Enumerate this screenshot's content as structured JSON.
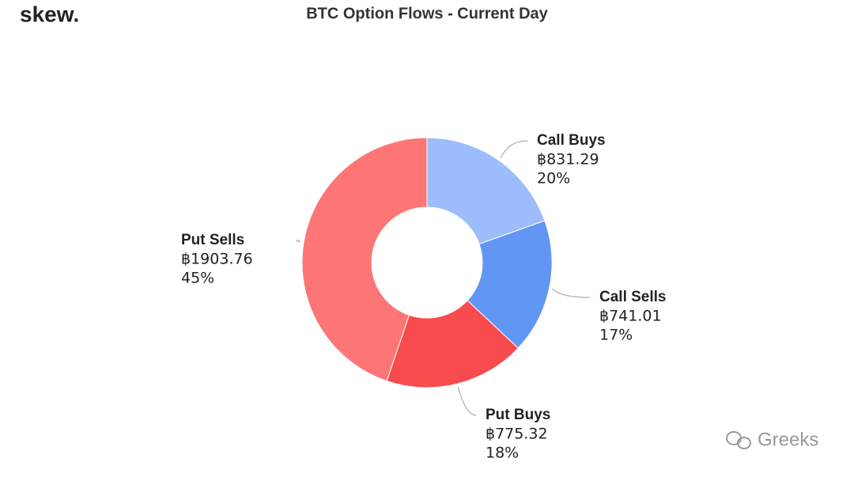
{
  "logo": "skew.",
  "watermark": "Greeks",
  "chart_data": {
    "type": "donut",
    "title": "BTC Option Flows - Current Day",
    "categories": [
      "Call Buys",
      "Call Sells",
      "Put Buys",
      "Put Sells"
    ],
    "values": [
      831.29,
      741.01,
      775.32,
      1903.76
    ],
    "value_labels": [
      "฿831.29",
      "฿741.01",
      "฿775.32",
      "฿1903.76"
    ],
    "percent_labels": [
      "20%",
      "17%",
      "18%",
      "45%"
    ],
    "colors": [
      "#9dbcfb",
      "#6196f5",
      "#f74b4d",
      "#fe7576"
    ]
  }
}
